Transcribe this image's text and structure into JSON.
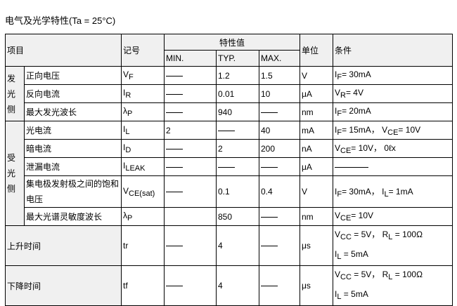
{
  "title": "电气及光学特性(Ta = 25°C)",
  "header": {
    "item": "项目",
    "symbol": "记号",
    "char": "特性值",
    "min": "MIN.",
    "typ": "TYP.",
    "max": "MAX.",
    "unit": "单位",
    "cond": "条件"
  },
  "groups": {
    "emit": "发光侧",
    "recv": "受光侧"
  },
  "rows": [
    {
      "name": "正向电压",
      "sym": "V",
      "sub": "F",
      "min": "—",
      "typ": "1.2",
      "max": "1.5",
      "unit": "V",
      "c1": "I",
      "c1s": "F",
      "c1t": "= 30mA"
    },
    {
      "name": "反向电流",
      "sym": "I",
      "sub": "R",
      "min": "—",
      "typ": "0.01",
      "max": "10",
      "unit": "μA",
      "c1": "V",
      "c1s": "R",
      "c1t": "= 4V"
    },
    {
      "name": "最大发光波长",
      "sym": "λ",
      "sub": "P",
      "min": "—",
      "typ": "940",
      "max": "—",
      "unit": "nm",
      "c1": "I",
      "c1s": "F",
      "c1t": "= 20mA"
    },
    {
      "name": "光电流",
      "sym": "I",
      "sub": "L",
      "min": "2",
      "typ": "—",
      "max": "40",
      "unit": "mA",
      "c1": "I",
      "c1s": "F",
      "c1t": "= 15mA，",
      "c2": "V",
      "c2s": "CE",
      "c2t": "= 10V"
    },
    {
      "name": "暗电流",
      "sym": "I",
      "sub": "D",
      "min": "—",
      "typ": "2",
      "max": "200",
      "unit": "nA",
      "c1": "V",
      "c1s": "CE",
      "c1t": "= 10V，",
      "c2": "0ℓx"
    },
    {
      "name": "泄漏电流",
      "sym": "I",
      "sub": "LEAK",
      "min": "—",
      "typ": "—",
      "max": "—",
      "unit": "μA",
      "c1": "—"
    },
    {
      "name": "集电极发射极之间的饱和电压",
      "sym": "V",
      "sub": "CE(sat)",
      "min": "—",
      "typ": "0.1",
      "max": "0.4",
      "unit": "V",
      "c1": "I",
      "c1s": "F",
      "c1t": "= 30mA，",
      "c2": "I",
      "c2s": "L",
      "c2t": "= 1mA"
    },
    {
      "name": "最大光谱灵敏度波长",
      "sym": "λ",
      "sub": "P",
      "min": "",
      "typ": "850",
      "max": "—",
      "unit": "nm",
      "c1": "V",
      "c1s": "CE",
      "c1t": "= 10V"
    },
    {
      "name": "上升时间",
      "sym": "tr",
      "min": "—",
      "typ": "4",
      "max": "—",
      "unit": "μs",
      "c1": "V",
      "c1s": "CC",
      "c1t": " = 5V，",
      "c2": "R",
      "c2s": "L",
      "c2t": " = 100Ω",
      "c3": "I",
      "c3s": "L",
      "c3t": " = 5mA"
    },
    {
      "name": "下降时间",
      "sym": "tf",
      "min": "—",
      "typ": "4",
      "max": "—",
      "unit": "μs",
      "c1": "V",
      "c1s": "CC",
      "c1t": " = 5V，",
      "c2": "R",
      "c2s": "L",
      "c2t": " = 100Ω",
      "c3": "I",
      "c3s": "L",
      "c3t": " = 5mA"
    }
  ]
}
